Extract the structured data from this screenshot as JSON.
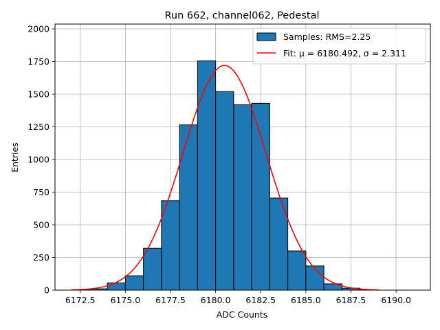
{
  "chart_data": {
    "type": "bar",
    "title": "Run 662, channel062, Pedestal",
    "xlabel": "ADC Counts",
    "ylabel": "Entries",
    "xlim": [
      6171.1,
      6191.9
    ],
    "ylim": [
      0,
      2037
    ],
    "grid": true,
    "legend_position": "top-right",
    "x_ticks": [
      6172.5,
      6175.0,
      6177.5,
      6180.0,
      6182.5,
      6185.0,
      6187.5,
      6190.0
    ],
    "x_tick_labels": [
      "6172.5",
      "6175.0",
      "6177.5",
      "6180.0",
      "6182.5",
      "6185.0",
      "6187.5",
      "6190.0"
    ],
    "y_ticks": [
      0,
      250,
      500,
      750,
      1000,
      1250,
      1500,
      1750,
      2000
    ],
    "y_tick_labels": [
      "0",
      "250",
      "500",
      "750",
      "1000",
      "1250",
      "1500",
      "1750",
      "2000"
    ],
    "histogram": {
      "name": "Samples: RMS=2.25",
      "color": "#1f77b4",
      "edge_color": "#000000",
      "bin_edges": [
        6172,
        6173,
        6174,
        6175,
        6176,
        6177,
        6178,
        6179,
        6180,
        6181,
        6182,
        6183,
        6184,
        6185,
        6186,
        6187,
        6188,
        6189,
        6190,
        6191
      ],
      "counts": [
        2,
        10,
        55,
        110,
        320,
        685,
        1265,
        1755,
        1520,
        1420,
        1430,
        705,
        300,
        185,
        48,
        15,
        2,
        0,
        0
      ]
    },
    "fit": {
      "name": "Fit: μ = 6180.492, σ = 2.311",
      "color": "#ff0000",
      "mu": 6180.492,
      "sigma": 2.311,
      "amplitude": 1720,
      "x_range": [
        6172,
        6189
      ]
    }
  }
}
